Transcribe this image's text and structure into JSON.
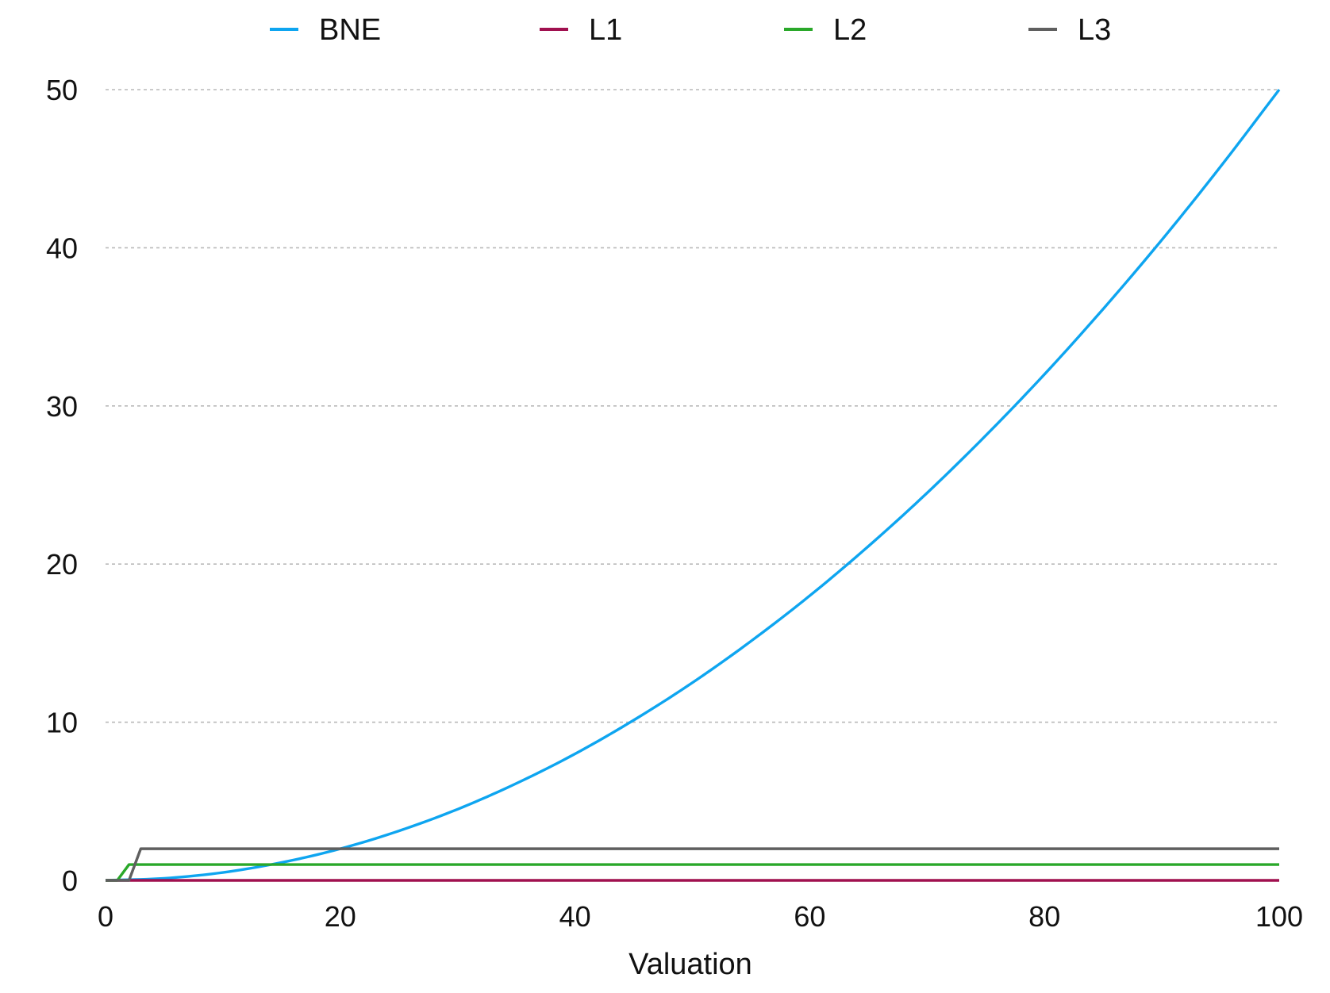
{
  "chart_data": {
    "type": "line",
    "title": "",
    "xlabel": "Valuation",
    "ylabel": "",
    "xlim": [
      0,
      100
    ],
    "ylim": [
      0,
      50
    ],
    "xticks": [
      0,
      20,
      40,
      60,
      80,
      100
    ],
    "yticks": [
      0,
      10,
      20,
      30,
      40,
      50
    ],
    "grid": "horizontal dashed",
    "legend_position": "top",
    "series": [
      {
        "name": "BNE",
        "color": "#0ea5f0",
        "x": [
          0,
          5,
          10,
          15,
          20,
          25,
          30,
          35,
          40,
          45,
          50,
          55,
          60,
          65,
          70,
          75,
          80,
          85,
          90,
          95,
          100
        ],
        "y": [
          0,
          0.13,
          0.5,
          1.13,
          2,
          3.13,
          4.5,
          6.13,
          8,
          10.13,
          12.5,
          15.13,
          18,
          21.13,
          24.5,
          28.13,
          32,
          36.13,
          40.5,
          45.13,
          50
        ]
      },
      {
        "name": "L1",
        "color": "#a0104f",
        "x": [
          0,
          100
        ],
        "y": [
          0,
          0
        ]
      },
      {
        "name": "L2",
        "color": "#2aa82a",
        "x": [
          0,
          1,
          2,
          100
        ],
        "y": [
          0,
          0,
          1,
          1
        ]
      },
      {
        "name": "L3",
        "color": "#5f5f5f",
        "x": [
          0,
          2,
          3,
          100
        ],
        "y": [
          0,
          0,
          2,
          2
        ]
      }
    ]
  }
}
